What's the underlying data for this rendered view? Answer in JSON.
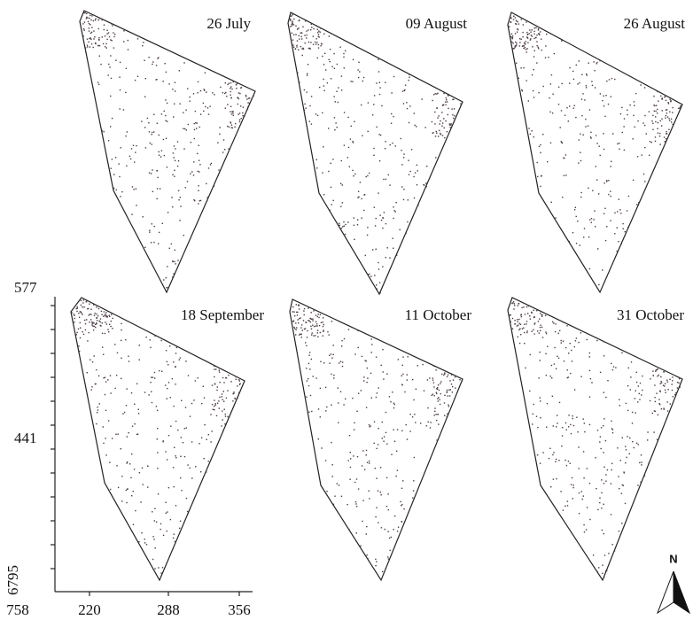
{
  "panels": [
    {
      "title": "26 July"
    },
    {
      "title": "09 August"
    },
    {
      "title": "26 August"
    },
    {
      "title": "18 September"
    },
    {
      "title": "11 October"
    },
    {
      "title": "31 October"
    }
  ],
  "axis": {
    "y_labels": [
      "577",
      "441",
      "6795"
    ],
    "x_labels": [
      "758",
      "220",
      "288",
      "356"
    ]
  },
  "north": "N"
}
